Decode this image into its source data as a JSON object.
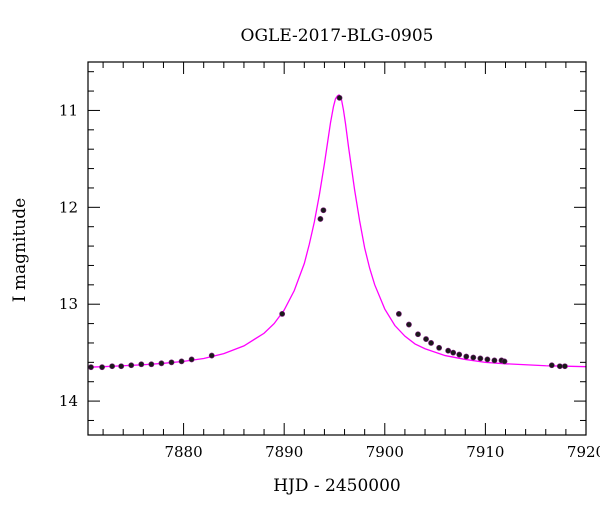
{
  "chart_data": {
    "type": "scatter",
    "title": "OGLE-2017-BLG-0905",
    "xlabel": "HJD - 2450000",
    "ylabel": "I magnitude",
    "xlim": [
      7870.5,
      7920
    ],
    "ylim": [
      14.35,
      10.5
    ],
    "y_inverted": true,
    "x_ticks": [
      7880,
      7890,
      7900,
      7910,
      7920
    ],
    "x_tick_labels": [
      "7880",
      "7890",
      "7900",
      "7910",
      "7920"
    ],
    "y_ticks": [
      11,
      12,
      13,
      14
    ],
    "y_tick_labels": [
      "11",
      "12",
      "13",
      "14"
    ],
    "grid": false,
    "colors": {
      "points": "#1a1a1a",
      "model": "#ff00ff",
      "axes": "#000000"
    },
    "series": [
      {
        "type": "scatter",
        "x": [
          7870.8,
          7871.9,
          7872.9,
          7873.8,
          7874.8,
          7875.8,
          7876.8,
          7877.8,
          7878.8,
          7879.8,
          7880.8,
          7882.8,
          7889.8,
          7893.6,
          7893.9,
          7895.5,
          7901.4,
          7902.4,
          7903.3,
          7904.1,
          7904.6,
          7905.4,
          7906.3,
          7906.8,
          7907.4,
          7908.1,
          7908.8,
          7909.5,
          7910.2,
          7910.9,
          7911.6,
          7911.9,
          7916.6,
          7917.4,
          7917.9
        ],
        "y": [
          13.65,
          13.65,
          13.64,
          13.64,
          13.63,
          13.62,
          13.62,
          13.61,
          13.6,
          13.59,
          13.57,
          13.53,
          13.1,
          12.12,
          12.03,
          10.87,
          13.1,
          13.21,
          13.31,
          13.36,
          13.4,
          13.45,
          13.48,
          13.5,
          13.52,
          13.54,
          13.55,
          13.56,
          13.57,
          13.58,
          13.58,
          13.59,
          13.63,
          13.64,
          13.64
        ]
      },
      {
        "type": "line",
        "x": [
          7870.5,
          7872,
          7874,
          7876,
          7878,
          7880,
          7882,
          7884,
          7886,
          7888,
          7889,
          7890,
          7891,
          7892,
          7892.5,
          7893,
          7893.5,
          7894,
          7894.3,
          7894.6,
          7894.9,
          7895.1,
          7895.3,
          7895.45,
          7895.55,
          7895.7,
          7895.9,
          7896.1,
          7896.4,
          7896.7,
          7897,
          7897.5,
          7898,
          7898.5,
          7899,
          7900,
          7901,
          7902,
          7903,
          7904,
          7906,
          7908,
          7910,
          7912,
          7914,
          7916,
          7918,
          7920
        ],
        "y": [
          13.65,
          13.645,
          13.635,
          13.625,
          13.61,
          13.59,
          13.56,
          13.51,
          13.43,
          13.3,
          13.2,
          13.06,
          12.86,
          12.58,
          12.38,
          12.15,
          11.87,
          11.55,
          11.34,
          11.13,
          10.96,
          10.88,
          10.85,
          10.84,
          10.85,
          10.89,
          11.0,
          11.14,
          11.38,
          11.6,
          11.82,
          12.14,
          12.42,
          12.63,
          12.8,
          13.05,
          13.22,
          13.33,
          13.41,
          13.46,
          13.53,
          13.57,
          13.6,
          13.615,
          13.625,
          13.635,
          13.64,
          13.645
        ]
      }
    ]
  }
}
